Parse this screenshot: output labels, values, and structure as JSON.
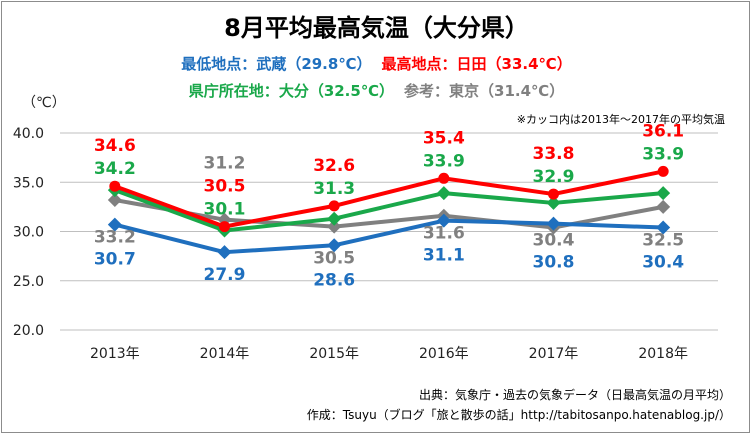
{
  "header": {
    "title": "8月平均最高気温（大分県）",
    "lowest_label": "最低地点：",
    "lowest_value": "武蔵（29.8℃）",
    "highest_label": "最高地点：",
    "highest_value": "日田（33.4℃）",
    "capital_label": "県庁所在地：",
    "capital_value": "大分（32.5℃）",
    "ref_label": "参考：",
    "ref_value": "東京（31.4℃）"
  },
  "note": "※カッコ内は2013年～2017年の平均気温",
  "unit": "（℃）",
  "footer": {
    "source": "出典：気象庁・過去の気象データ（日最高気温の月平均）",
    "author": "作成：Tsuyu（ブログ「旅と散歩の話」http://tabitosanpo.hatenablog.jp/）"
  },
  "colors": {
    "blue": "#1f6fbe",
    "red": "#ff0000",
    "green": "#1aa84a",
    "gray": "#808080",
    "title": "#000000"
  },
  "chart_data": {
    "type": "line",
    "categories": [
      "2013年",
      "2014年",
      "2015年",
      "2016年",
      "2017年",
      "2018年"
    ],
    "ylim": [
      20,
      40
    ],
    "yticks": [
      "20.0",
      "25.0",
      "30.0",
      "35.0",
      "40.0"
    ],
    "grid": true,
    "series": [
      {
        "key": "mushi",
        "color": "#1f6fbe",
        "marker": "diamond",
        "values": [
          30.7,
          27.9,
          28.6,
          31.1,
          30.8,
          30.4
        ]
      },
      {
        "key": "hita",
        "color": "#ff0000",
        "marker": "circle",
        "values": [
          34.6,
          30.5,
          32.6,
          35.4,
          33.8,
          36.1
        ]
      },
      {
        "key": "oita",
        "color": "#1aa84a",
        "marker": "diamond",
        "values": [
          34.2,
          30.1,
          31.3,
          33.9,
          32.9,
          33.9
        ]
      },
      {
        "key": "tokyo",
        "color": "#808080",
        "marker": "diamond",
        "values": [
          33.2,
          31.2,
          30.5,
          31.6,
          30.4,
          32.5
        ]
      }
    ]
  }
}
